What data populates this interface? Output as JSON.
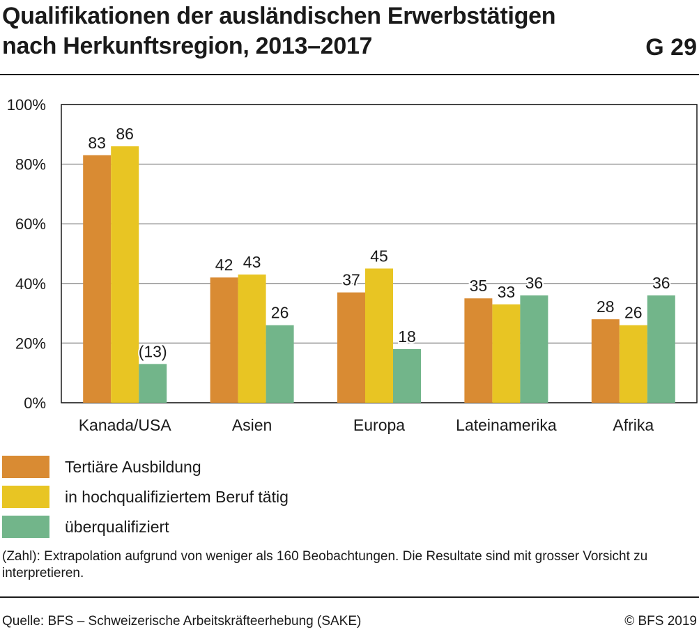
{
  "header": {
    "title_line1": "Qualifikationen der ausländischen Erwerbstätigen",
    "title_line2": "nach Herkunftsregion, 2013–2017",
    "graphic_number": "G 29"
  },
  "chart_data": {
    "type": "bar",
    "categories": [
      "Kanada/USA",
      "Asien",
      "Europa",
      "Lateinamerika",
      "Afrika"
    ],
    "series": [
      {
        "name": "Tertiäre Ausbildung",
        "color": "#d98b33",
        "values": [
          83,
          42,
          37,
          35,
          28
        ],
        "labels": [
          "83",
          "42",
          "37",
          "35",
          "28"
        ]
      },
      {
        "name": "in hochqualifiziertem Beruf tätig",
        "color": "#e8c523",
        "values": [
          86,
          43,
          45,
          33,
          26
        ],
        "labels": [
          "86",
          "43",
          "45",
          "33",
          "26"
        ]
      },
      {
        "name": "überqualifiziert",
        "color": "#72b58a",
        "values": [
          13,
          26,
          18,
          36,
          36
        ],
        "labels": [
          "(13)",
          "26",
          "18",
          "36",
          "36"
        ]
      }
    ],
    "yticks": [
      0,
      20,
      40,
      60,
      80,
      100
    ],
    "ytick_labels": [
      "0%",
      "20%",
      "40%",
      "60%",
      "80%",
      "100%"
    ],
    "ylim": [
      0,
      100
    ],
    "grid": true,
    "legend_position": "bottom-left"
  },
  "legend": {
    "items": [
      {
        "label": "Tertiäre Ausbildung",
        "color": "#d98b33"
      },
      {
        "label": "in hochqualifiziertem Beruf tätig",
        "color": "#e8c523"
      },
      {
        "label": "überqualifiziert",
        "color": "#72b58a"
      }
    ]
  },
  "footnote": "(Zahl): Extrapolation aufgrund von weniger als 160 Beobachtungen. Die Resultate sind mit grosser Vorsicht zu interpretieren.",
  "source": "Quelle: BFS – Schweizerische Arbeitskräfteerhebung (SAKE)",
  "copyright": "© BFS 2019"
}
